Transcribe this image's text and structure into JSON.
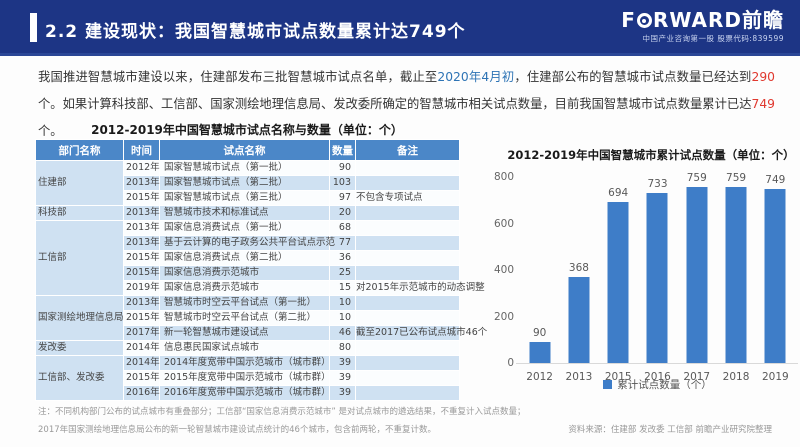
{
  "header": {
    "title": "2.2 建设现状：我国智慧城市试点数量累计达749个",
    "logo_text_left": "F",
    "logo_text_right": "RWARD前瞻",
    "logo_subtitle": "中国产业咨询第一股 股票代码:839599"
  },
  "colors": {
    "header_bg": "#1d3585",
    "table_header_bg": "#4b87c8",
    "row_light_blue": "#cfe1f2",
    "row_white": "#fbfdfe",
    "bar_blue": "#3e7dc8",
    "highlight_red": "#e0392f",
    "highlight_blue": "#2e74b5"
  },
  "body": {
    "segments": [
      {
        "text": "我国推进智慧城市建设以来，住建部发布三批智慧城市试点名单，截止至",
        "color": "dark"
      },
      {
        "text": "2020年4月初",
        "color": "blue"
      },
      {
        "text": "，住建部公布的智慧城市试点数量已经达到",
        "color": "dark"
      },
      {
        "text": "290",
        "color": "red"
      },
      {
        "text": "个。如果计算科技部、工信部、国家测绘地理信息局、发改委所确定的智慧城市相关试点数量，目前我国智慧城市试点数量累计已达",
        "color": "dark"
      },
      {
        "text": "749",
        "color": "red"
      },
      {
        "text": "个。",
        "color": "dark"
      }
    ]
  },
  "table": {
    "title": "2012-2019年中国智慧城市试点名称与数量（单位：个）",
    "headers": [
      "部门名称",
      "时间",
      "试点名称",
      "数量",
      "备注"
    ],
    "groups": [
      {
        "name": "住建部",
        "rows": [
          [
            "2012年",
            "国家智慧城市试点（第一批）",
            "90",
            ""
          ],
          [
            "2013年",
            "国家智慧城市试点（第二批）",
            "103",
            ""
          ],
          [
            "2015年",
            "国家智慧城市试点（第三批）",
            "97",
            "不包含专项试点"
          ]
        ]
      },
      {
        "name": "科技部",
        "rows": [
          [
            "2013年",
            "智慧城市技术和标准试点",
            "20",
            ""
          ]
        ]
      },
      {
        "name": "工信部",
        "rows": [
          [
            "2013年",
            "国家信息消费试点（第一批）",
            "68",
            ""
          ],
          [
            "2013年",
            "基于云计算的电子政务公共平台试点示范",
            "77",
            ""
          ],
          [
            "2015年",
            "国家信息消费试点（第二批）",
            "36",
            ""
          ],
          [
            "2015年",
            "国家信息消费示范城市",
            "25",
            ""
          ],
          [
            "2019年",
            "国家信息消费示范城市",
            "15",
            "对2015年示范城市的动态调整"
          ]
        ]
      },
      {
        "name": "国家测绘地理信息局",
        "rows": [
          [
            "2013年",
            "智慧城市时空云平台试点（第一批）",
            "10",
            ""
          ],
          [
            "2015年",
            "智慧城市时空云平台试点（第二批）",
            "10",
            ""
          ],
          [
            "2017年",
            "新一轮智慧城市建设试点",
            "46",
            "截至2017已公布试点城市46个"
          ]
        ]
      },
      {
        "name": "发改委",
        "rows": [
          [
            "2014年",
            "信息惠民国家试点城市",
            "80",
            ""
          ]
        ]
      },
      {
        "name": "工信部、发改委",
        "rows": [
          [
            "2014年",
            "2014年度宽带中国示范城市（城市群）",
            "39",
            ""
          ],
          [
            "2015年",
            "2015年度宽带中国示范城市（城市群）",
            "39",
            ""
          ],
          [
            "2016年",
            "2016年度宽带中国示范城市（城市群）",
            "39",
            ""
          ]
        ]
      }
    ]
  },
  "chart_data": {
    "type": "bar",
    "title": "2012-2019年中国智慧城市累计试点数量（单位：个）",
    "categories": [
      "2012",
      "2013",
      "2015",
      "2016",
      "2017",
      "2018",
      "2019"
    ],
    "values": [
      90,
      368,
      694,
      733,
      759,
      759,
      749
    ],
    "legend": [
      "累计试点数量（个）"
    ],
    "yticks": [
      0,
      200,
      400,
      600,
      800
    ],
    "ylim": [
      0,
      800
    ],
    "bar_color": "#3e7dc8",
    "grid": false,
    "legend_position": "bottom"
  },
  "footer": {
    "note_line1": "注：不同机构部门公布的试点城市有重叠部分；工信部“国家信息消费示范城市” 是对试点城市的遴选结果，不重复计入试点数量；",
    "note_line2": "2017年国家测绘地理信息局公布的新一轮智慧城市建设试点统计的46个城市，包含前两轮，不重复计数。",
    "source": "资料来源：住建部 发改委 工信部 前瞻产业研究院整理"
  }
}
